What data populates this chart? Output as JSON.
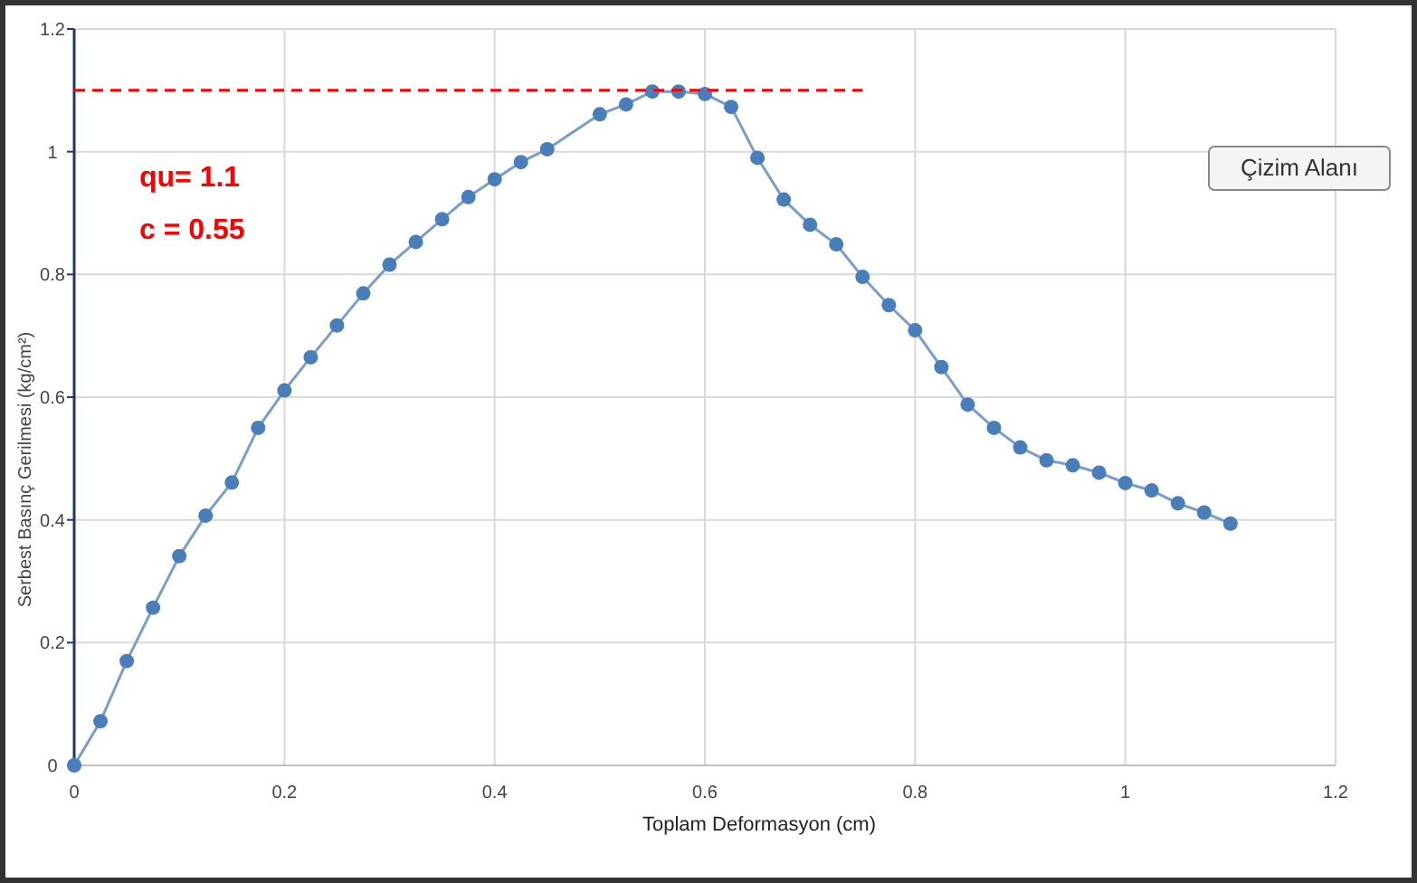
{
  "chart_data": {
    "type": "line",
    "xlabel": "Toplam Deformasyon (cm)",
    "ylabel": "Serbest Basınç Gerilmesi (kg/cm²)",
    "xlim": [
      0,
      1.2
    ],
    "xticks": [
      0,
      0.2,
      0.4,
      0.6,
      0.8,
      1,
      1.2
    ],
    "ylim": [
      0,
      1.2
    ],
    "yticks": [
      0,
      0.2,
      0.4,
      0.6,
      0.8,
      1,
      1.2
    ],
    "grid": true,
    "marker": "circle",
    "series": [
      {
        "color": "#4a7ebb",
        "x": [
          0,
          0.025,
          0.05,
          0.075,
          0.1,
          0.125,
          0.15,
          0.175,
          0.2,
          0.225,
          0.25,
          0.275,
          0.3,
          0.325,
          0.35,
          0.375,
          0.4,
          0.425,
          0.45,
          0.5,
          0.525,
          0.55,
          0.575,
          0.6,
          0.625,
          0.65,
          0.675,
          0.7,
          0.725,
          0.75,
          0.775,
          0.8,
          0.825,
          0.85,
          0.875,
          0.9,
          0.925,
          0.95,
          0.975,
          1,
          1.025,
          1.05,
          1.075,
          1.1
        ],
        "values": [
          0,
          0.072,
          0.17,
          0.257,
          0.341,
          0.407,
          0.461,
          0.55,
          0.611,
          0.665,
          0.717,
          0.769,
          0.816,
          0.853,
          0.89,
          0.926,
          0.955,
          0.983,
          1.004,
          1.061,
          1.077,
          1.098,
          1.098,
          1.094,
          1.073,
          0.99,
          0.922,
          0.881,
          0.849,
          0.796,
          0.75,
          0.709,
          0.649,
          0.588,
          0.55,
          0.518,
          0.497,
          0.489,
          0.477,
          0.46,
          0.448,
          0.427,
          0.412,
          0.394
        ]
      },
      {
        "type": "line",
        "color": "#ff0000",
        "line_style": "dashed",
        "marker": "none",
        "x": [
          0,
          0.75
        ],
        "values": [
          1.1,
          1.1
        ]
      }
    ],
    "annotations": [
      "qu= 1.1",
      "c = 0.55",
      "Çizim Alanı"
    ]
  }
}
